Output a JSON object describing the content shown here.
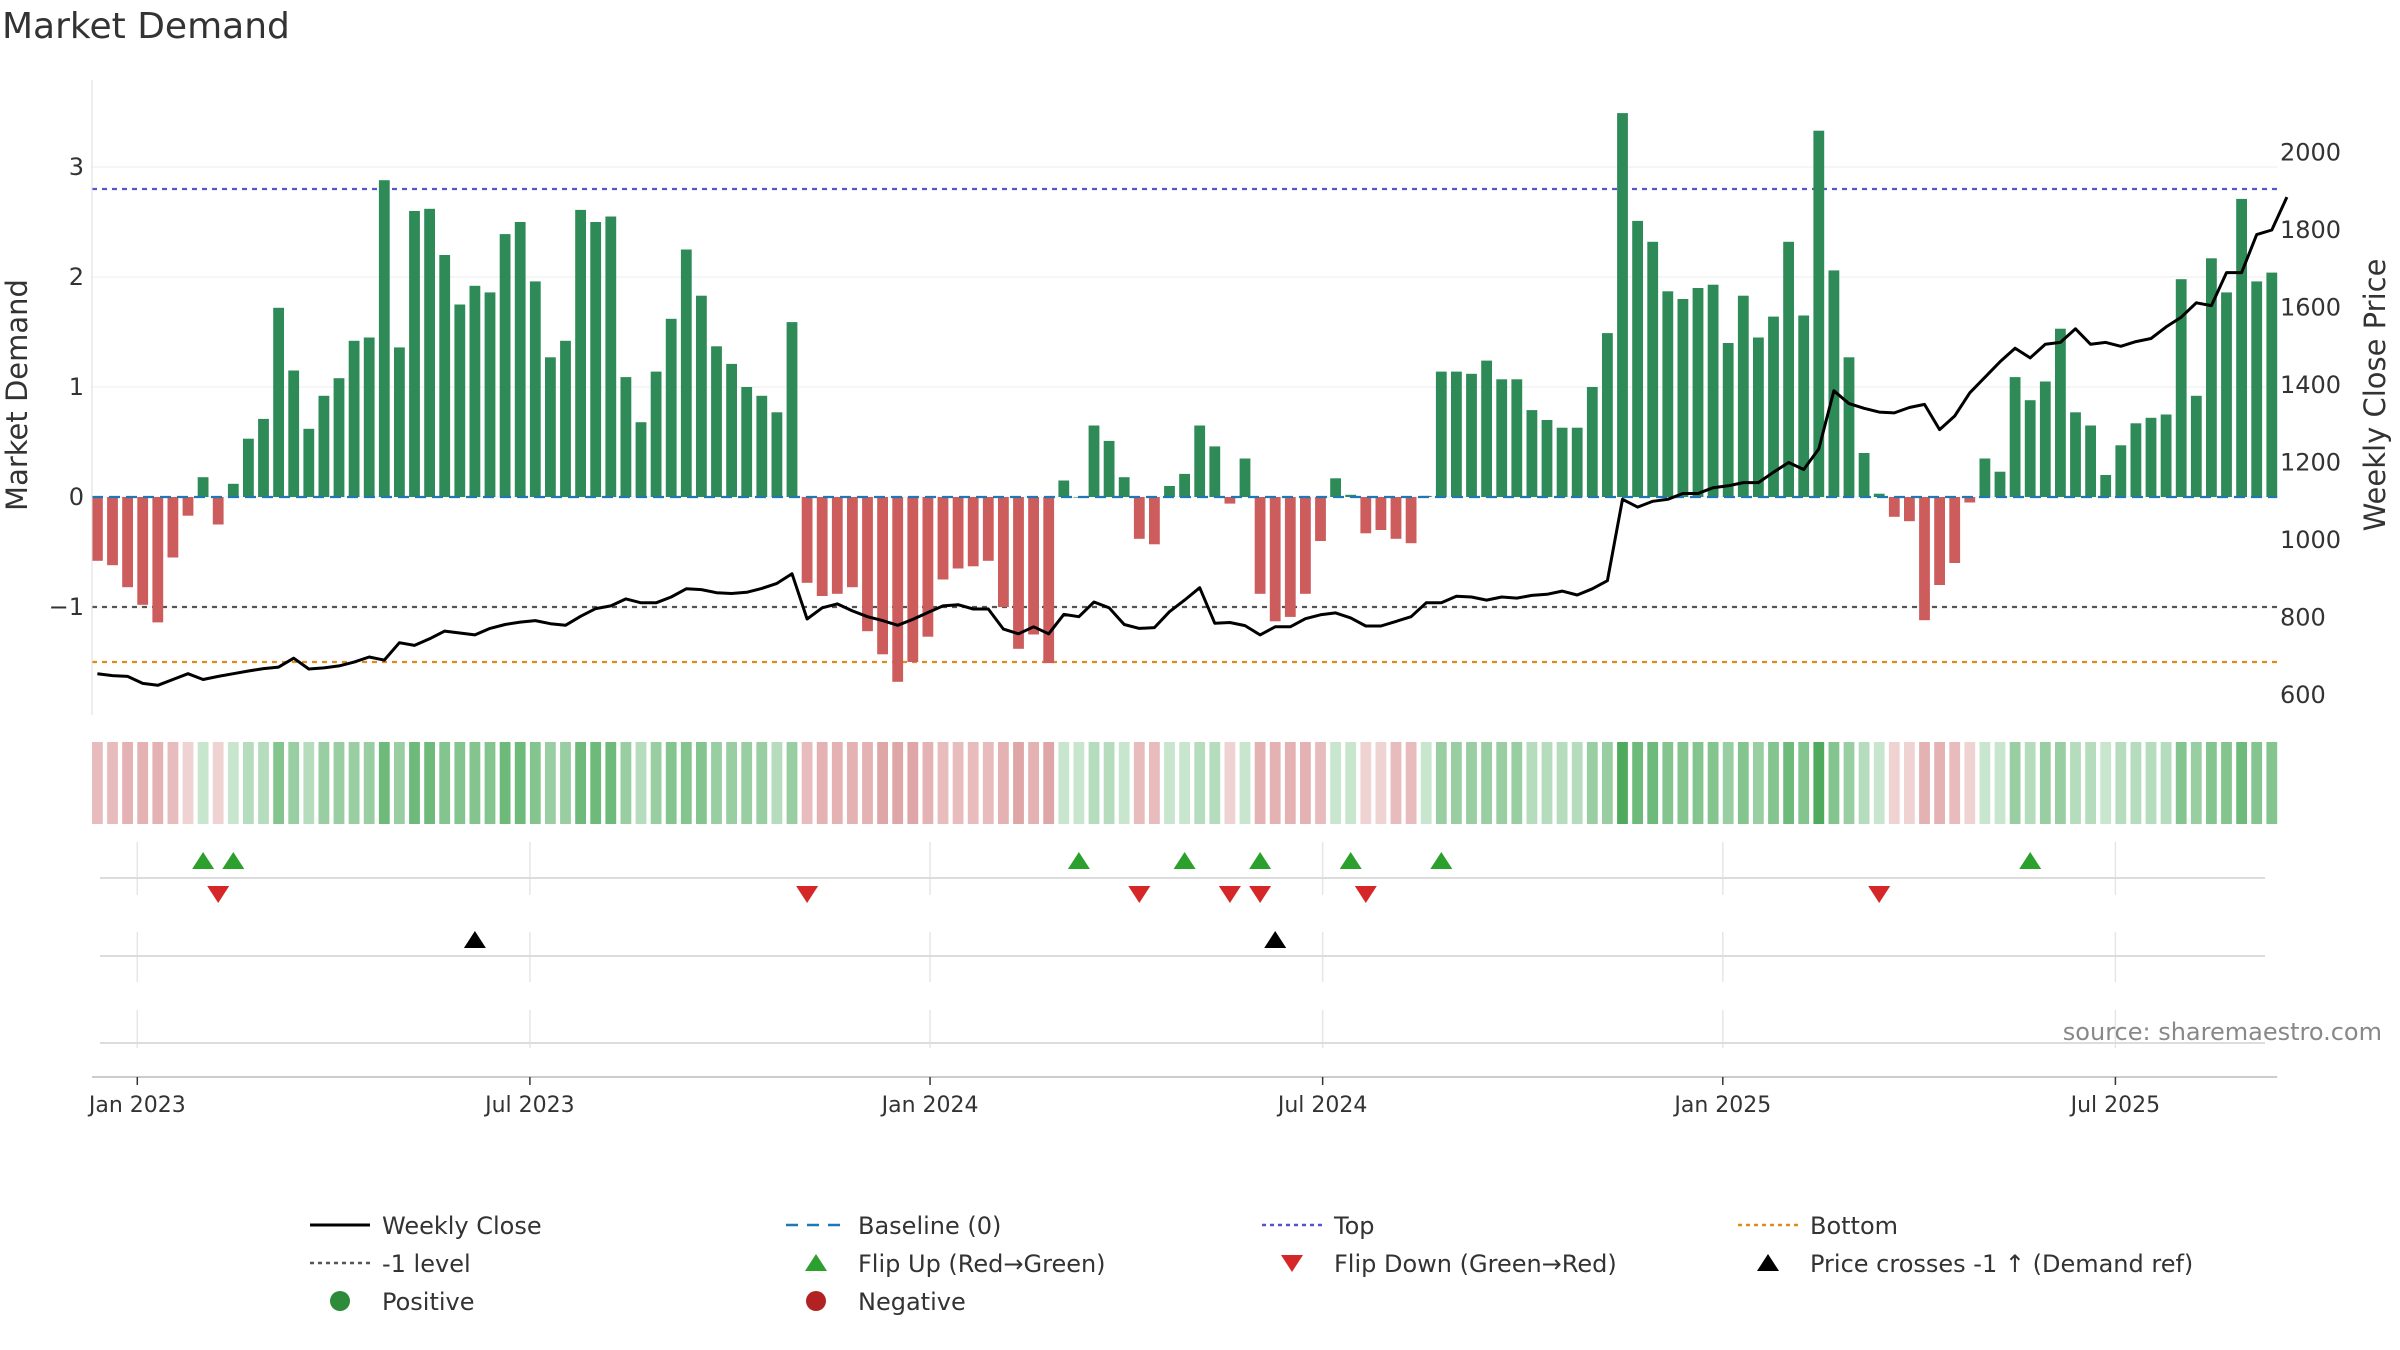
{
  "chart_data": {
    "type": "bar",
    "title": "Market Demand",
    "ylabel": "Market Demand",
    "y2label": "Weekly Close Price",
    "ylim": [
      -2.0,
      3.8
    ],
    "y2lim": [
      550,
      2150
    ],
    "yticks": [
      "−1",
      "0",
      "1",
      "2",
      "3"
    ],
    "ytick_values": [
      -1,
      0,
      1,
      2,
      3
    ],
    "y2ticks": [
      600,
      800,
      1000,
      1200,
      1400,
      1600,
      1800,
      2000
    ],
    "levels": {
      "top": 2.8,
      "minus_one": -1.0,
      "bottom": -1.5
    },
    "x_start": "2023-01-02",
    "x_interval": "weekly",
    "x_ticks": [
      {
        "label": "Jan 2023",
        "week": 3
      },
      {
        "label": "Jul 2023",
        "week": 29
      },
      {
        "label": "Jan 2024",
        "week": 55.5
      },
      {
        "label": "Jul 2024",
        "week": 81.5
      },
      {
        "label": "Jan 2025",
        "week": 108
      },
      {
        "label": "Jul 2025",
        "week": 134
      }
    ],
    "demand": [
      -0.58,
      -0.62,
      -0.82,
      -0.98,
      -1.14,
      -0.55,
      -0.17,
      0.18,
      -0.25,
      0.12,
      0.53,
      0.71,
      1.72,
      1.15,
      0.62,
      0.92,
      1.08,
      1.42,
      1.45,
      2.88,
      1.36,
      2.6,
      2.62,
      2.2,
      1.75,
      1.92,
      1.86,
      2.39,
      2.5,
      1.96,
      1.27,
      1.42,
      2.61,
      2.5,
      2.55,
      1.09,
      0.68,
      1.14,
      1.62,
      2.25,
      1.83,
      1.37,
      1.21,
      1.0,
      0.92,
      0.77,
      1.59,
      -0.78,
      -0.9,
      -0.88,
      -0.82,
      -1.22,
      -1.43,
      -1.68,
      -1.5,
      -1.27,
      -0.75,
      -0.65,
      -0.63,
      -0.58,
      -1.0,
      -1.38,
      -1.25,
      -1.51,
      0.15,
      0.0,
      0.65,
      0.51,
      0.18,
      -0.38,
      -0.43,
      0.1,
      0.21,
      0.65,
      0.46,
      -0.06,
      0.35,
      -0.88,
      -1.13,
      -1.09,
      -0.88,
      -0.4,
      0.17,
      0.02,
      -0.33,
      -0.3,
      -0.38,
      -0.42,
      0.01,
      1.14,
      1.14,
      1.12,
      1.24,
      1.07,
      1.07,
      0.79,
      0.7,
      0.63,
      0.63,
      1.0,
      1.49,
      3.49,
      2.51,
      2.32,
      1.87,
      1.8,
      1.9,
      1.93,
      1.4,
      1.83,
      1.45,
      1.64,
      2.32,
      1.65,
      3.33,
      2.06,
      1.27,
      0.4,
      0.03,
      -0.18,
      -0.22,
      -1.12,
      -0.8,
      -0.6,
      -0.05,
      0.35,
      0.23,
      1.09,
      0.88,
      1.05,
      1.53,
      0.77,
      0.65,
      0.2,
      0.47,
      0.67,
      0.72,
      0.75,
      1.98,
      0.92,
      2.17,
      1.86,
      2.71,
      1.96,
      2.04
    ],
    "close": [
      655,
      650,
      648,
      630,
      625,
      640,
      655,
      640,
      648,
      655,
      662,
      668,
      672,
      695,
      667,
      670,
      675,
      685,
      698,
      690,
      735,
      728,
      745,
      765,
      760,
      755,
      772,
      782,
      788,
      792,
      784,
      780,
      803,
      823,
      830,
      848,
      838,
      838,
      853,
      874,
      872,
      864,
      862,
      865,
      875,
      888,
      913,
      796,
      825,
      835,
      817,
      802,
      792,
      780,
      795,
      813,
      830,
      833,
      822,
      822,
      770,
      758,
      776,
      758,
      808,
      802,
      840,
      825,
      782,
      772,
      774,
      815,
      845,
      877,
      785,
      787,
      779,
      755,
      776,
      776,
      797,
      807,
      812,
      799,
      778,
      778,
      790,
      802,
      838,
      838,
      855,
      853,
      845,
      853,
      850,
      857,
      860,
      868,
      858,
      874,
      895,
      1105,
      1085,
      1100,
      1105,
      1120,
      1120,
      1135,
      1140,
      1148,
      1148,
      1175,
      1200,
      1182,
      1235,
      1385,
      1352,
      1340,
      1330,
      1328,
      1342,
      1350,
      1285,
      1320,
      1380,
      1420,
      1460,
      1495,
      1470,
      1505,
      1510,
      1545,
      1505,
      1510,
      1500,
      1512,
      1520,
      1550,
      1575,
      1612,
      1605,
      1690,
      1690,
      1788,
      1800,
      1885
    ],
    "flip_up": [
      7,
      9,
      65,
      72,
      77,
      83,
      89,
      128
    ],
    "flip_down": [
      8,
      47,
      69,
      75,
      77,
      84,
      118
    ],
    "price_crosses": [
      25,
      78
    ],
    "heat_colors": {
      "green_1": "#c8e6cd",
      "green_2": "#b5dcbc",
      "green_3": "#98cea2",
      "green_4": "#84c48f",
      "green_5": "#6dba7a",
      "green_6": "#4faa5d",
      "red_1": "#efd3d3",
      "red_2": "#e8bcbc",
      "red_3": "#e4b2b2",
      "red_4": "#dea6a6"
    }
  },
  "legend": [
    {
      "label": "Weekly Close",
      "style": "solid",
      "color": "#000000"
    },
    {
      "label": "Baseline (0)",
      "style": "dash",
      "color": "#1f77b4"
    },
    {
      "label": "Top",
      "style": "dot",
      "color": "#5555cc"
    },
    {
      "label": "Bottom",
      "style": "dot",
      "color": "#e08a1e"
    },
    {
      "label": "-1 level",
      "style": "dot",
      "color": "#555555"
    },
    {
      "label": "Flip Up (Red→Green)",
      "style": "tri-up",
      "color": "#2ca02c"
    },
    {
      "label": "Flip Down (Green→Red)",
      "style": "tri-down",
      "color": "#d62728"
    },
    {
      "label": "Price crosses -1 ↑ (Demand ref)",
      "style": "tri-up",
      "color": "#000000"
    },
    {
      "label": "Positive",
      "style": "circle",
      "color": "#2e8b3a"
    },
    {
      "label": "Negative",
      "style": "circle",
      "color": "#b22222"
    }
  ],
  "source": "source: sharemaestro.com",
  "colors": {
    "positive_bar": "#2e8b57",
    "negative_bar": "#cd5c5c",
    "close_line": "#000000",
    "baseline": "#1f77b4",
    "top_line": "#5555cc",
    "bottom_line": "#e08a1e",
    "minus_one_line": "#555555",
    "flip_up": "#2ca02c",
    "flip_down": "#d62728",
    "cross_marker": "#000000",
    "legend_positive": "#2e8b3a",
    "legend_negative": "#b22222"
  }
}
